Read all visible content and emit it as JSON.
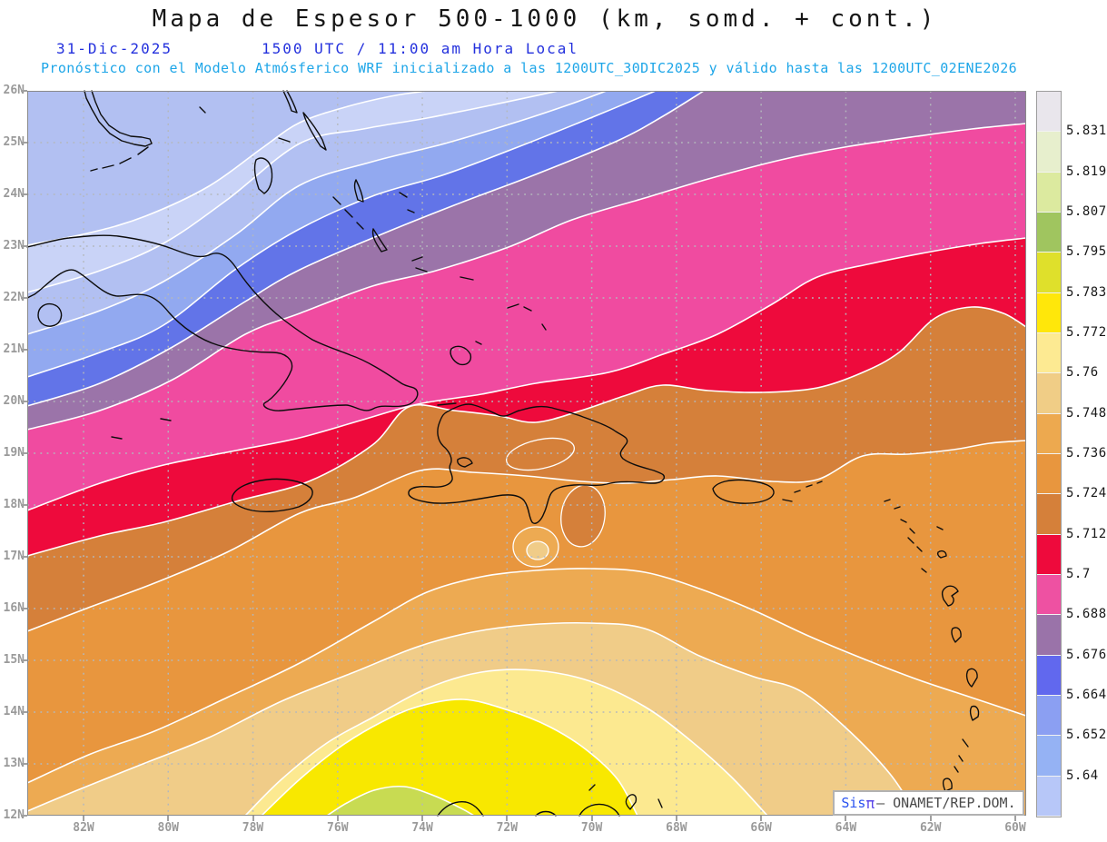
{
  "header": {
    "title": "Mapa de Espesor 500-1000 (km, somd. + cont.)",
    "date": "31-Dic-2025",
    "time_local": "1500 UTC / 11:00 am Hora Local",
    "forecast_line": "Pronóstico con el Modelo Atmósferico WRF inicializado a las 1200UTC_30DIC2025 y válido hasta las  1200UTC_02ENE2026"
  },
  "axes": {
    "lat_labels": [
      "26N",
      "25N",
      "24N",
      "23N",
      "22N",
      "21N",
      "20N",
      "19N",
      "18N",
      "17N",
      "16N",
      "15N",
      "14N",
      "13N",
      "12N"
    ],
    "lon_labels": [
      "82W",
      "80W",
      "78W",
      "76W",
      "74W",
      "72W",
      "70W",
      "68W",
      "66W",
      "64W",
      "62W",
      "60W"
    ]
  },
  "colorbar": {
    "tick_labels": [
      "5.831",
      "5.819",
      "5.807",
      "5.795",
      "5.783",
      "5.772",
      "5.76",
      "5.748",
      "5.736",
      "5.724",
      "5.712",
      "5.7",
      "5.688",
      "5.676",
      "5.664",
      "5.652",
      "5.64"
    ],
    "colors_top_to_bottom": [
      "#e9e6ec",
      "#e7efcd",
      "#dcea9f",
      "#a0c55f",
      "#dfe02b",
      "#ffe70a",
      "#fdea92",
      "#f0cd86",
      "#eda94f",
      "#e8963e",
      "#d5803a",
      "#ee0a3c",
      "#ee51a2",
      "#9a73a9",
      "#6168ee",
      "#8b9ff2",
      "#95b2f4",
      "#b7c7f8"
    ]
  },
  "map": {
    "band_fill_sequence_nw_to_se": [
      "#b2c0f2",
      "#c9d3f7",
      "#b2c0f2",
      "#92a9f0",
      "#6274e8",
      "#9b74a9",
      "#f04ba0",
      "#ee0a3c",
      "#d5803a",
      "#e8963e",
      "#edaa52",
      "#f0cc88",
      "#fce990",
      "#f8e800",
      "#c8db52"
    ],
    "contour_line_color": "#ffffff",
    "coastline_color": "#0d0d0d",
    "grid_color": "#b4b8bc",
    "attribution": {
      "sis": "Sis",
      "pi": "π",
      "rest": "– ONAMET/REP.DOM."
    }
  },
  "chart_data": {
    "type": "filled-contour-map",
    "title": "Mapa de Espesor 500-1000 (km, somd. + cont.)",
    "variable": "Espesor 500-1000 hPa (km)",
    "contour_levels": [
      5.64,
      5.652,
      5.664,
      5.676,
      5.688,
      5.7,
      5.712,
      5.724,
      5.736,
      5.748,
      5.76,
      5.772,
      5.783,
      5.795,
      5.807,
      5.819,
      5.831
    ],
    "lat_ticks": [
      "12N",
      "13N",
      "14N",
      "15N",
      "16N",
      "17N",
      "18N",
      "19N",
      "20N",
      "21N",
      "22N",
      "23N",
      "24N",
      "25N",
      "26N"
    ],
    "lon_ticks": [
      "82W",
      "80W",
      "78W",
      "76W",
      "74W",
      "72W",
      "70W",
      "68W",
      "66W",
      "64W",
      "62W",
      "60W"
    ],
    "gradient_description": "Thickness increases from NW (light blue, <5.64) to S (yellow-green, >5.783); diagonal SW-NE bands",
    "legend_position": "right"
  }
}
